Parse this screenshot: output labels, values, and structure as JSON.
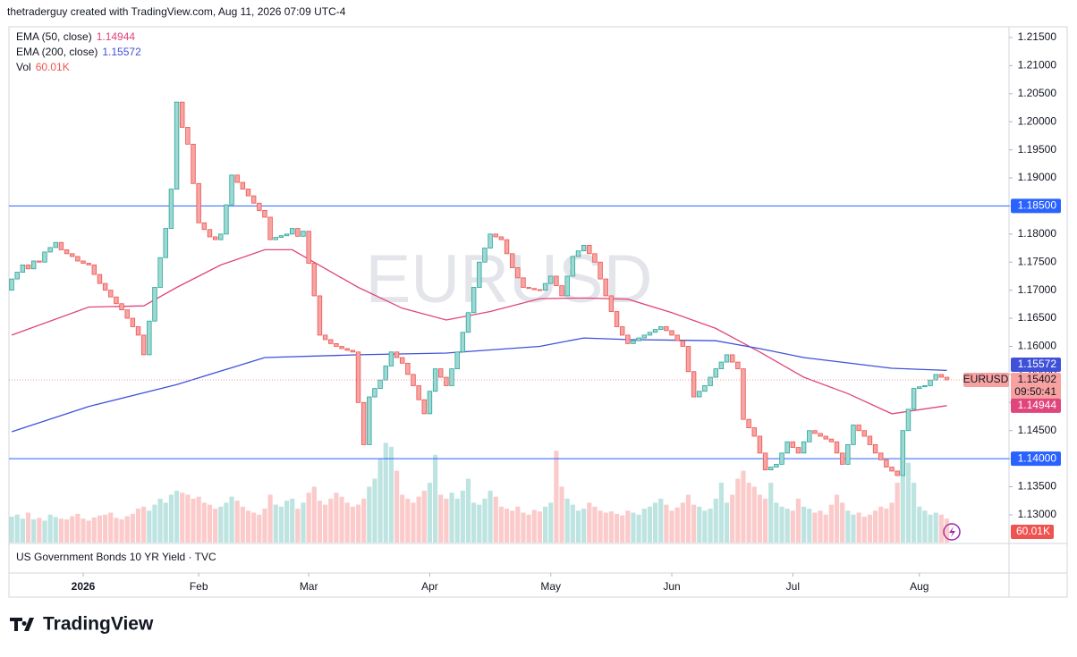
{
  "chart_data": {
    "type": "candlestick",
    "header": "thetraderguy created with TradingView.com, Aug 11, 2026 07:09 UTC-4",
    "symbol": "EURUSD",
    "countdown": "09:50:41",
    "footer_pane": "US Government Bonds 10 YR Yield · TVC",
    "brand": "TradingView",
    "up_color": "#26a69a",
    "down_color": "#ef5350",
    "open": [
      1.17,
      1.172,
      1.1732,
      1.1745,
      1.1738,
      1.1752,
      1.175,
      1.1768,
      1.1776,
      1.1785,
      1.1772,
      1.1765,
      1.176,
      1.1752,
      1.1748,
      1.1745,
      1.1728,
      1.1712,
      1.17,
      1.1688,
      1.1676,
      1.1665,
      1.165,
      1.1635,
      1.162,
      1.1585,
      1.1645,
      1.1705,
      1.1758,
      1.181,
      1.188,
      1.2035,
      1.199,
      1.196,
      1.189,
      1.182,
      1.1808,
      1.1795,
      1.179,
      1.18,
      1.1852,
      1.1905,
      1.1892,
      1.188,
      1.1868,
      1.1855,
      1.1842,
      1.183,
      1.179,
      1.1794,
      1.1797,
      1.18,
      1.181,
      1.1796,
      1.1805,
      1.1748,
      1.169,
      1.162,
      1.1612,
      1.1605,
      1.16,
      1.1596,
      1.1593,
      1.159,
      1.15,
      1.1425,
      1.151,
      1.1525,
      1.154,
      1.1565,
      1.159,
      1.158,
      1.157,
      1.155,
      1.153,
      1.1505,
      1.148,
      1.152,
      1.156,
      1.1545,
      1.153,
      1.156,
      1.159,
      1.1625,
      1.166,
      1.1705,
      1.175,
      1.1775,
      1.18,
      1.1795,
      1.179,
      1.1765,
      1.174,
      1.1722,
      1.1705,
      1.1703,
      1.1701,
      1.17,
      1.1712,
      1.1725,
      1.1708,
      1.169,
      1.1725,
      1.176,
      1.177,
      1.178,
      1.1765,
      1.175,
      1.172,
      1.169,
      1.1662,
      1.1635,
      1.162,
      1.1605,
      1.161,
      1.1615,
      1.162,
      1.1625,
      1.163,
      1.1635,
      1.1628,
      1.162,
      1.161,
      1.16,
      1.1555,
      1.151,
      1.152,
      1.153,
      1.1545,
      1.156,
      1.1572,
      1.1585,
      1.1572,
      1.156,
      1.147,
      1.1455,
      1.144,
      1.141,
      1.138,
      1.1385,
      1.139,
      1.141,
      1.143,
      1.142,
      1.141,
      1.143,
      1.145,
      1.1445,
      1.144,
      1.1435,
      1.143,
      1.141,
      1.139,
      1.1425,
      1.146,
      1.145,
      1.144,
      1.1425,
      1.141,
      1.1398,
      1.1385,
      1.1378,
      1.137,
      1.145,
      1.1488,
      1.1525,
      1.1528,
      1.153,
      1.154,
      1.155,
      1.1545
    ],
    "close": [
      1.172,
      1.1732,
      1.1745,
      1.1738,
      1.1752,
      1.175,
      1.1768,
      1.1776,
      1.1785,
      1.1772,
      1.1765,
      1.176,
      1.1752,
      1.1748,
      1.1745,
      1.1728,
      1.1712,
      1.17,
      1.1688,
      1.1676,
      1.1665,
      1.165,
      1.1635,
      1.162,
      1.1585,
      1.1645,
      1.1705,
      1.1758,
      1.181,
      1.188,
      1.2035,
      1.199,
      1.196,
      1.189,
      1.182,
      1.1808,
      1.1795,
      1.179,
      1.18,
      1.1852,
      1.1905,
      1.1892,
      1.188,
      1.1868,
      1.1855,
      1.1842,
      1.183,
      1.179,
      1.1794,
      1.1797,
      1.18,
      1.181,
      1.1796,
      1.1805,
      1.1748,
      1.169,
      1.162,
      1.1612,
      1.1605,
      1.16,
      1.1596,
      1.1593,
      1.159,
      1.15,
      1.1425,
      1.151,
      1.1525,
      1.154,
      1.1565,
      1.159,
      1.158,
      1.157,
      1.155,
      1.153,
      1.1505,
      1.148,
      1.152,
      1.156,
      1.1545,
      1.153,
      1.156,
      1.159,
      1.1625,
      1.166,
      1.1705,
      1.175,
      1.1775,
      1.18,
      1.1795,
      1.179,
      1.1765,
      1.174,
      1.1722,
      1.1705,
      1.1703,
      1.1701,
      1.17,
      1.1712,
      1.1725,
      1.1708,
      1.169,
      1.1725,
      1.176,
      1.177,
      1.178,
      1.1765,
      1.175,
      1.172,
      1.169,
      1.1662,
      1.1635,
      1.162,
      1.1605,
      1.161,
      1.1615,
      1.162,
      1.1625,
      1.163,
      1.1635,
      1.1628,
      1.162,
      1.161,
      1.16,
      1.1555,
      1.151,
      1.152,
      1.153,
      1.1545,
      1.156,
      1.1572,
      1.1585,
      1.1572,
      1.156,
      1.147,
      1.1455,
      1.144,
      1.141,
      1.138,
      1.1385,
      1.139,
      1.141,
      1.143,
      1.142,
      1.141,
      1.143,
      1.145,
      1.1445,
      1.144,
      1.1435,
      1.143,
      1.141,
      1.139,
      1.1425,
      1.146,
      1.145,
      1.144,
      1.1425,
      1.141,
      1.1398,
      1.1385,
      1.1378,
      1.137,
      1.145,
      1.1488,
      1.1525,
      1.1528,
      1.153,
      1.154,
      1.155,
      1.1545,
      1.15402
    ],
    "volume_name": "Vol",
    "volume": [
      65,
      70,
      60,
      75,
      58,
      62,
      55,
      70,
      64,
      60,
      58,
      66,
      72,
      60,
      55,
      63,
      68,
      70,
      75,
      62,
      58,
      66,
      72,
      85,
      90,
      80,
      95,
      110,
      100,
      120,
      130,
      125,
      120,
      110,
      115,
      100,
      95,
      85,
      90,
      100,
      115,
      105,
      90,
      80,
      75,
      70,
      85,
      120,
      95,
      90,
      105,
      110,
      85,
      100,
      125,
      140,
      105,
      95,
      110,
      125,
      115,
      100,
      90,
      95,
      110,
      140,
      160,
      210,
      250,
      240,
      180,
      120,
      110,
      100,
      115,
      130,
      150,
      220,
      120,
      110,
      125,
      110,
      130,
      160,
      100,
      95,
      110,
      130,
      115,
      90,
      85,
      80,
      90,
      75,
      70,
      82,
      78,
      90,
      100,
      230,
      140,
      110,
      95,
      80,
      85,
      100,
      90,
      80,
      75,
      78,
      72,
      68,
      80,
      75,
      70,
      85,
      90,
      100,
      110,
      95,
      80,
      88,
      100,
      120,
      95,
      90,
      80,
      85,
      110,
      150,
      100,
      120,
      160,
      180,
      150,
      140,
      120,
      110,
      150,
      100,
      90,
      85,
      80,
      110,
      90,
      85,
      75,
      80,
      70,
      95,
      120,
      100,
      80,
      70,
      75,
      65,
      70,
      80,
      90,
      85,
      100,
      150,
      280,
      200,
      150,
      90,
      80,
      70,
      75,
      70,
      60.01
    ],
    "volume_label": "60.01K",
    "ema": [
      {
        "name": "EMA (50, close)",
        "color": "#e0457b",
        "x": [
          0,
          14,
          24,
          30,
          38,
          46,
          51,
          63,
          71,
          79,
          87,
          96,
          104,
          112,
          120,
          128,
          136,
          144,
          152,
          160,
          170
        ],
        "values": [
          1.162,
          1.167,
          1.1672,
          1.1705,
          1.1745,
          1.1772,
          1.1772,
          1.1705,
          1.1668,
          1.1647,
          1.1662,
          1.1685,
          1.1686,
          1.1684,
          1.166,
          1.1632,
          1.159,
          1.1545,
          1.1516,
          1.148,
          1.14944
        ]
      },
      {
        "name": "EMA (200, close)",
        "color": "#3f51d8",
        "x": [
          0,
          14,
          30,
          46,
          63,
          79,
          96,
          104,
          112,
          128,
          136,
          144,
          160,
          170
        ],
        "values": [
          1.1448,
          1.1493,
          1.1532,
          1.158,
          1.1585,
          1.1588,
          1.16,
          1.1615,
          1.1612,
          1.161,
          1.1596,
          1.158,
          1.1561,
          1.15572
        ]
      }
    ],
    "hline_color": "#2962ff",
    "hlines": [
      {
        "value": 1.185,
        "label": "1.18500"
      },
      {
        "value": 1.14,
        "label": "1.14000"
      }
    ],
    "ylim": [
      1.1249,
      1.2169
    ],
    "yticks": [
      {
        "value": 1.13,
        "label": "1.13000"
      },
      {
        "value": 1.135,
        "label": "1.13500"
      },
      {
        "value": 1.14,
        "label": "1.14000"
      },
      {
        "value": 1.145,
        "label": "1.14500"
      },
      {
        "value": 1.15,
        "label": "1.15000"
      },
      {
        "value": 1.155,
        "label": "1.15500"
      },
      {
        "value": 1.16,
        "label": "1.16000"
      },
      {
        "value": 1.165,
        "label": "1.16500"
      },
      {
        "value": 1.17,
        "label": "1.17000"
      },
      {
        "value": 1.175,
        "label": "1.17500"
      },
      {
        "value": 1.18,
        "label": "1.18000"
      },
      {
        "value": 1.185,
        "label": "1.18500"
      },
      {
        "value": 1.19,
        "label": "1.19000"
      },
      {
        "value": 1.195,
        "label": "1.19500"
      },
      {
        "value": 1.2,
        "label": "1.20000"
      },
      {
        "value": 1.205,
        "label": "1.20500"
      },
      {
        "value": 1.21,
        "label": "1.21000"
      },
      {
        "value": 1.215,
        "label": "1.21500"
      }
    ],
    "xlim": [
      -0.5,
      181.3
    ],
    "xticks": [
      {
        "value": 13,
        "label": "2026"
      },
      {
        "value": 34,
        "label": "Feb"
      },
      {
        "value": 54,
        "label": "Mar"
      },
      {
        "value": 76,
        "label": "Apr"
      },
      {
        "value": 98,
        "label": "May"
      },
      {
        "value": 120,
        "label": "Jun"
      },
      {
        "value": 142,
        "label": "Jul"
      },
      {
        "value": 165,
        "label": "Aug"
      }
    ]
  }
}
